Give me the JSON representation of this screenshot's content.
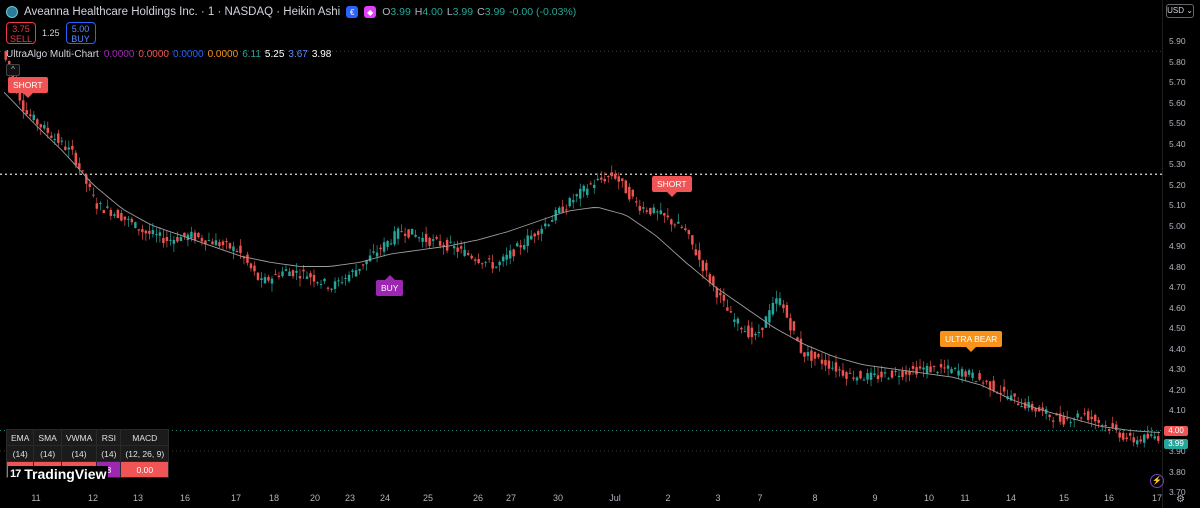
{
  "header": {
    "symbol_title": "Aveanna Healthcare Holdings Inc. · 1 · NASDAQ · Heikin Ashi",
    "ohlc": [
      {
        "k": "O",
        "v": "3.99"
      },
      {
        "k": "H",
        "v": "4.00"
      },
      {
        "k": "L",
        "v": "3.99"
      },
      {
        "k": "C",
        "v": "3.99"
      },
      {
        "k": "",
        "v": "-0.00 (-0.03%)"
      }
    ]
  },
  "trade": {
    "sell_price": "3.75",
    "sell_label": "SELL",
    "spread": "1.25",
    "buy_price": "5.00",
    "buy_label": "BUY"
  },
  "indicator": {
    "name": "UltraAlgo Multi-Chart",
    "values": [
      {
        "v": "0.0000",
        "color": "#9c27b0"
      },
      {
        "v": "0.0000",
        "color": "#f05454"
      },
      {
        "v": "0.0000",
        "color": "#2962ff"
      },
      {
        "v": "0.0000",
        "color": "#f7931a"
      },
      {
        "v": "6.11",
        "color": "#26a69a"
      },
      {
        "v": "5.25",
        "color": "#ffffff"
      },
      {
        "v": "3.67",
        "color": "#5b8cff"
      },
      {
        "v": "3.98",
        "color": "#ffffff"
      }
    ]
  },
  "currency": "USD",
  "price_axis": [
    "5.90",
    "5.80",
    "5.70",
    "5.60",
    "5.50",
    "5.40",
    "5.30",
    "5.20",
    "5.10",
    "5.00",
    "4.90",
    "4.80",
    "4.70",
    "4.60",
    "4.50",
    "4.40",
    "4.30",
    "4.20",
    "4.10",
    "4.00",
    "3.90",
    "3.80",
    "3.70"
  ],
  "price_tags": {
    "ask": {
      "v": "4.00",
      "color": "#f05454"
    },
    "last": {
      "v": "3.99",
      "color": "#26a69a"
    }
  },
  "time_axis": [
    "11",
    "12",
    "13",
    "16",
    "17",
    "18",
    "20",
    "23",
    "24",
    "25",
    "26",
    "27",
    "30",
    "Jul",
    "2",
    "3",
    "7",
    "8",
    "9",
    "10",
    "11",
    "14",
    "15",
    "16",
    "17"
  ],
  "signals": [
    {
      "label": "SHORT",
      "type": "short"
    },
    {
      "label": "SHORT",
      "type": "short"
    },
    {
      "label": "BUY",
      "type": "buy"
    },
    {
      "label": "ULTRA BEAR",
      "type": "ultra"
    }
  ],
  "table": {
    "headers": [
      "EMA",
      "SMA",
      "VWMA",
      "RSI",
      "MACD"
    ],
    "params": [
      "(14)",
      "(14)",
      "(14)",
      "(14)",
      "(12, 26, 9)"
    ],
    "values": [
      "",
      "",
      "",
      "8",
      "0.00"
    ]
  },
  "brand": "TradingView",
  "chart_data": {
    "type": "candlestick",
    "title": "Aveanna Healthcare Holdings Inc. · 1 · NASDAQ · Heikin Ashi",
    "x_categories": [
      "11",
      "12",
      "13",
      "16",
      "17",
      "18",
      "20",
      "23",
      "24",
      "25",
      "26",
      "27",
      "30",
      "Jul",
      "2",
      "3",
      "7",
      "8",
      "9",
      "10",
      "11",
      "14",
      "15",
      "16",
      "17"
    ],
    "ylim": [
      3.7,
      5.9
    ],
    "price_path": [
      5.85,
      5.55,
      5.45,
      5.35,
      5.1,
      5.05,
      4.97,
      4.93,
      4.95,
      4.92,
      4.88,
      4.72,
      4.78,
      4.76,
      4.7,
      4.78,
      4.88,
      4.98,
      4.93,
      4.9,
      4.85,
      4.8,
      4.9,
      5.0,
      5.1,
      5.2,
      5.25,
      5.1,
      5.05,
      4.98,
      4.75,
      4.55,
      4.45,
      4.65,
      4.38,
      4.33,
      4.27,
      4.26,
      4.28,
      4.3,
      4.3,
      4.28,
      4.22,
      4.15,
      4.1,
      4.05,
      4.08,
      4.02,
      3.95,
      3.97
    ],
    "ma_path": [
      5.65,
      5.5,
      5.36,
      5.2,
      5.08,
      5.0,
      4.95,
      4.9,
      4.85,
      4.82,
      4.8,
      4.8,
      4.82,
      4.86,
      4.88,
      4.9,
      4.93,
      4.97,
      5.02,
      5.07,
      5.09,
      5.05,
      4.95,
      4.82,
      4.7,
      4.6,
      4.5,
      4.42,
      4.36,
      4.32,
      4.3,
      4.28,
      4.26,
      4.22,
      4.15,
      4.1,
      4.06,
      4.02,
      4.0,
      3.99
    ],
    "horizontal_levels": [
      5.85,
      5.25,
      4.0,
      3.9
    ],
    "grid": false
  }
}
